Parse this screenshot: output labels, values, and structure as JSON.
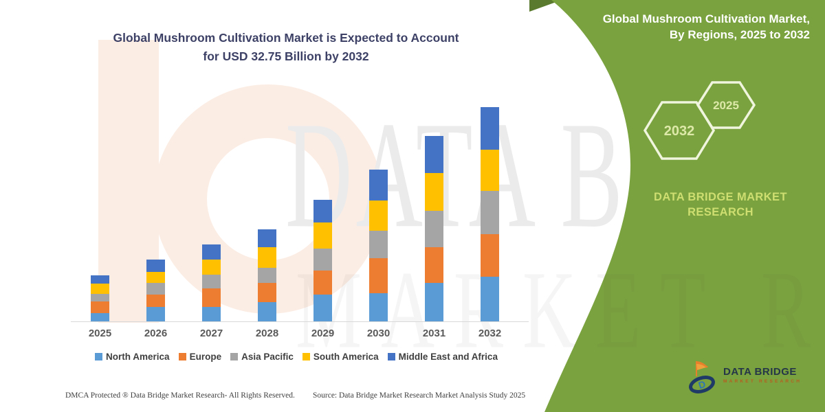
{
  "title": {
    "line1": "Global Mushroom Cultivation Market is Expected to Account",
    "line2": "for USD 32.75 Billion by 2032"
  },
  "panel": {
    "title_line1": "Global Mushroom Cultivation Market,",
    "title_line2": "By Regions, 2025 to 2032",
    "hexagon_large_label": "2032",
    "hexagon_small_label": "2025",
    "brand_line1": "DATA BRIDGE MARKET",
    "brand_line2": "RESEARCH",
    "background_color": "#7aa23f"
  },
  "watermark": {
    "row1": "DATA BRI",
    "row2": "MARKET RES"
  },
  "logo": {
    "name": "DATA BRIDGE",
    "subtitle": "MARKET RESEARCH"
  },
  "footer": {
    "dmca": "DMCA Protected ® Data Bridge Market Research- All Rights Reserved.",
    "source": "Source: Data Bridge Market Research Market Analysis Study 2025"
  },
  "chart_data": {
    "type": "bar",
    "subtype": "stacked-column",
    "title": "Global Mushroom Cultivation Market is Expected to Account for USD 32.75 Billion by 2032",
    "unit": "USD Billion",
    "key_value": "USD 32.75 Billion by 2032",
    "categories": [
      "2025",
      "2026",
      "2027",
      "2028",
      "2029",
      "2030",
      "2031",
      "2032"
    ],
    "series": [
      {
        "name": "North America",
        "color": "#5B9BD5",
        "values": [
          1.3,
          2.2,
          2.2,
          2.9,
          4.1,
          4.3,
          5.9,
          6.8
        ]
      },
      {
        "name": "Europe",
        "color": "#ED7D31",
        "values": [
          1.7,
          1.9,
          2.8,
          3.0,
          3.7,
          5.4,
          5.4,
          6.5
        ]
      },
      {
        "name": "Asia Pacific",
        "color": "#A5A5A5",
        "values": [
          1.2,
          1.8,
          2.1,
          2.3,
          3.3,
          4.2,
          5.6,
          6.6
        ]
      },
      {
        "name": "South America",
        "color": "#FFC000",
        "values": [
          1.6,
          1.7,
          2.3,
          3.1,
          4.0,
          4.6,
          5.8,
          6.3
        ]
      },
      {
        "name": "Middle East and Africa",
        "color": "#4472C4",
        "values": [
          1.2,
          1.8,
          2.4,
          2.8,
          3.5,
          4.7,
          5.6,
          6.55
        ]
      }
    ],
    "totals_estimated": [
      7.0,
      9.4,
      11.8,
      14.1,
      18.6,
      23.2,
      28.3,
      32.75
    ],
    "ylim": [
      0,
      34.6
    ],
    "y_axis_visible": false,
    "gridlines": false,
    "legend_position": "bottom"
  }
}
